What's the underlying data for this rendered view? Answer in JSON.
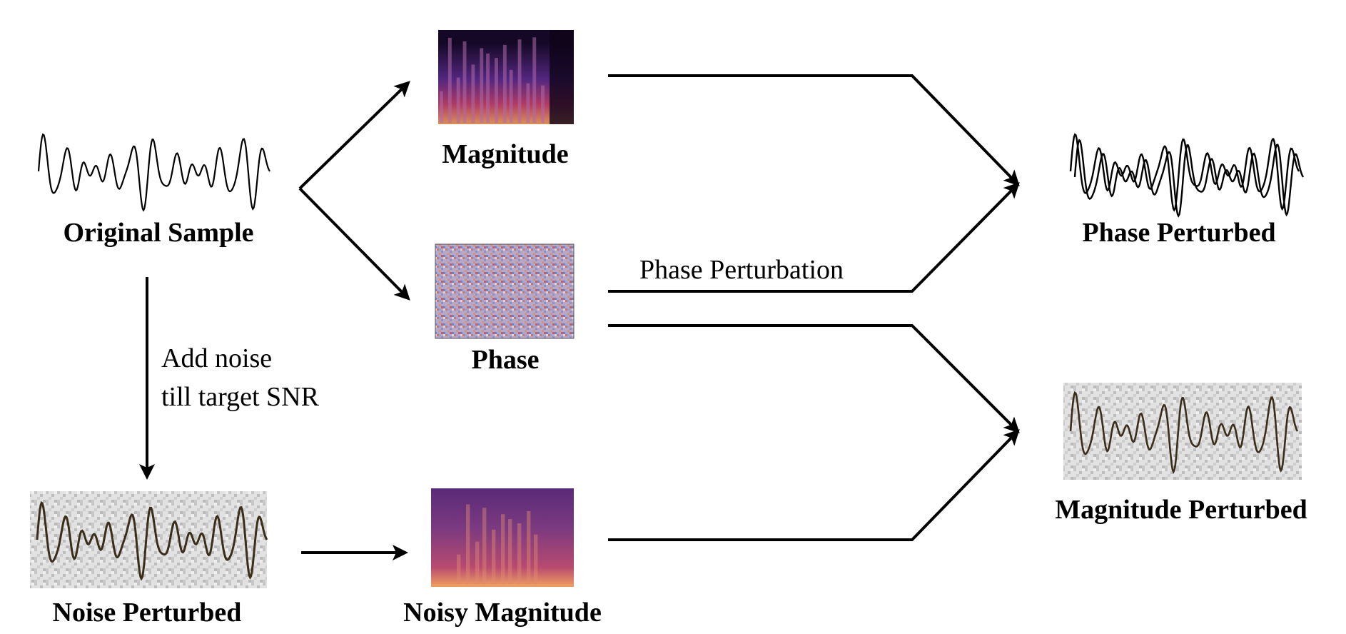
{
  "labels": {
    "original_sample": "Original Sample",
    "magnitude": "Magnitude",
    "phase": "Phase",
    "phase_perturbed": "Phase Perturbed",
    "magnitude_perturbed": "Magnitude Perturbed",
    "noise_perturbed": "Noise Perturbed",
    "noisy_magnitude": "Noisy Magnitude"
  },
  "annotations": {
    "add_noise_line1": "Add noise",
    "add_noise_line2": "till target SNR",
    "phase_perturbation": "Phase Perturbation"
  },
  "colors": {
    "ink": "#000000",
    "waveform_noisy": "#3a2e1a",
    "noise_gray": "#c8c8c8",
    "magnitude_dark": "#1a0a2e",
    "magnitude_bright": "#f0a060",
    "phase_red": "#c8766e",
    "phase_blue": "#8890c8"
  }
}
